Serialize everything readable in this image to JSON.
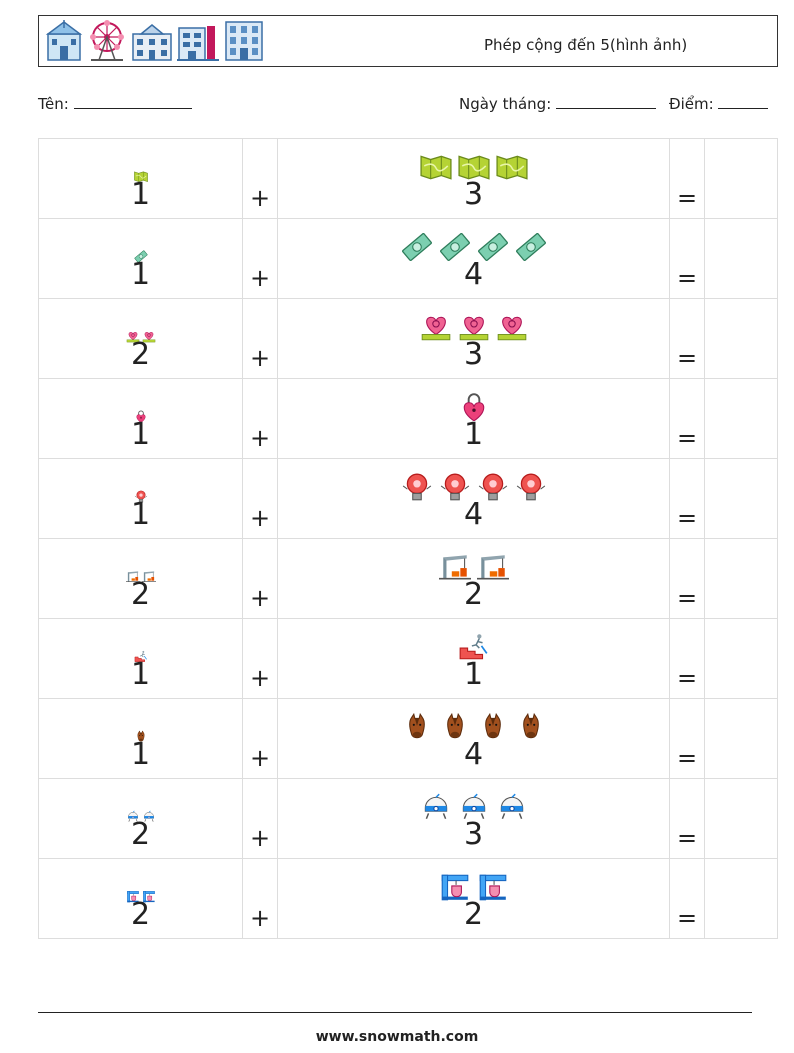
{
  "header": {
    "title": "Phép cộng đến 5(hình ảnh)",
    "icons": [
      "church-icon",
      "ferris-wheel-icon",
      "school-building-icon",
      "hotel-icon",
      "office-building-icon"
    ]
  },
  "info": {
    "name_label": "Tên:",
    "date_label": "Ngày tháng:",
    "score_label": "Điểm:"
  },
  "problems": [
    {
      "a": "1",
      "b": "3",
      "icon": "map-icon",
      "plus": "+",
      "equals": "="
    },
    {
      "a": "1",
      "b": "4",
      "icon": "banknote-icon",
      "plus": "+",
      "equals": "="
    },
    {
      "a": "2",
      "b": "3",
      "icon": "heart-badge-icon",
      "plus": "+",
      "equals": "="
    },
    {
      "a": "1",
      "b": "1",
      "icon": "heart-lock-icon",
      "plus": "+",
      "equals": "="
    },
    {
      "a": "1",
      "b": "4",
      "icon": "alarm-bell-icon",
      "plus": "+",
      "equals": "="
    },
    {
      "a": "2",
      "b": "2",
      "icon": "construction-crane-icon",
      "plus": "+",
      "equals": "="
    },
    {
      "a": "1",
      "b": "1",
      "icon": "stair-climber-icon",
      "plus": "+",
      "equals": "="
    },
    {
      "a": "1",
      "b": "4",
      "icon": "horse-head-icon",
      "plus": "+",
      "equals": "="
    },
    {
      "a": "2",
      "b": "3",
      "icon": "robot-vacuum-icon",
      "plus": "+",
      "equals": "="
    },
    {
      "a": "2",
      "b": "2",
      "icon": "coffee-machine-icon",
      "plus": "+",
      "equals": "="
    }
  ],
  "footer": {
    "url": "www.snowmath.com"
  }
}
